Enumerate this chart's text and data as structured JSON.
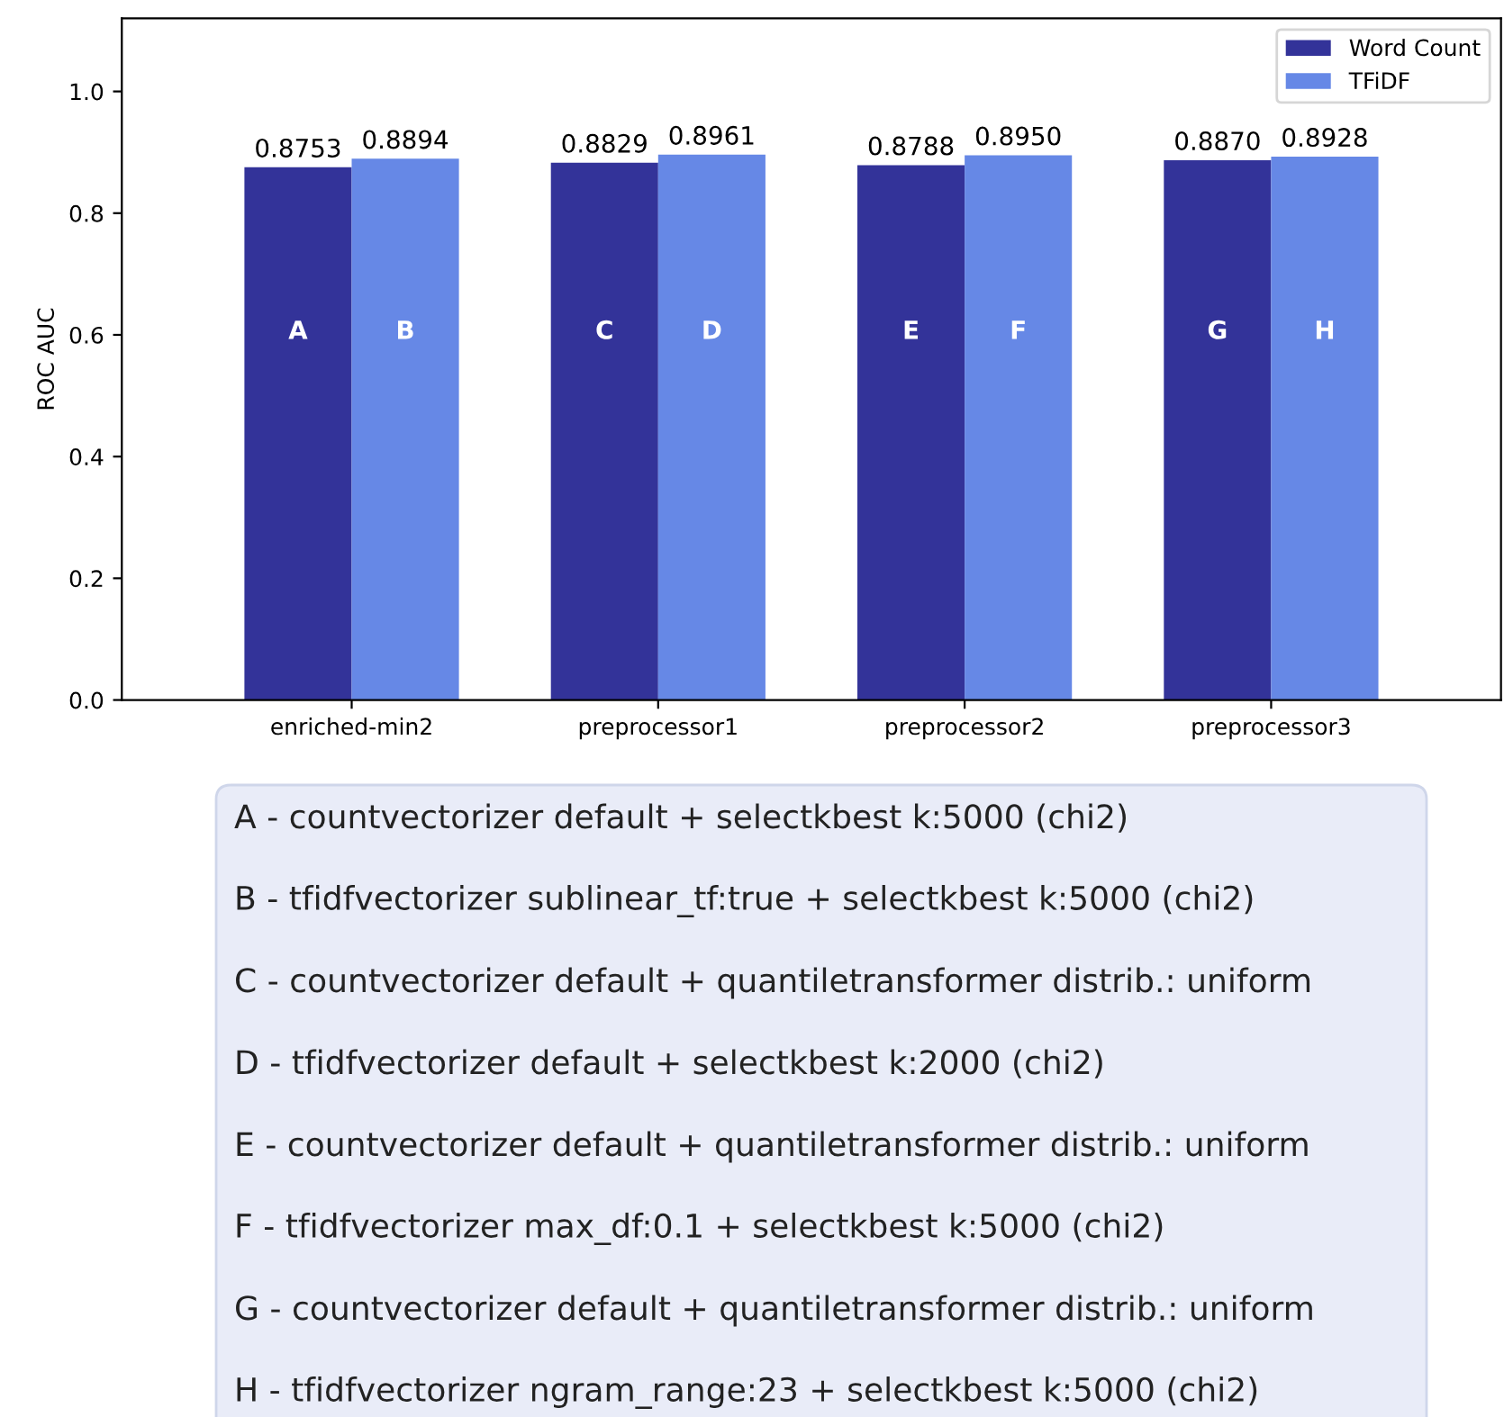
{
  "chart_data": {
    "type": "bar",
    "ylabel": "ROC AUC",
    "categories": [
      "enriched-min2",
      "preprocessor1",
      "preprocessor2",
      "preprocessor3"
    ],
    "series": [
      {
        "name": "Word Count",
        "color": "#333399",
        "values": [
          0.8753,
          0.8829,
          0.8788,
          0.887
        ],
        "value_labels": [
          "0.8753",
          "0.8829",
          "0.8788",
          "0.8870"
        ]
      },
      {
        "name": "TFiDF",
        "color": "#6688e6",
        "values": [
          0.8894,
          0.8961,
          0.895,
          0.8928
        ],
        "value_labels": [
          "0.8894",
          "0.8961",
          "0.8950",
          "0.8928"
        ]
      }
    ],
    "ylim": [
      0,
      1.12
    ],
    "yticks": [
      {
        "value": 0,
        "label": "0.0"
      },
      {
        "value": 0.2,
        "label": "0.2"
      },
      {
        "value": 0.4,
        "label": "0.4"
      },
      {
        "value": 0.6,
        "label": "0.6"
      },
      {
        "value": 0.8,
        "label": "0.8"
      },
      {
        "value": 1.0,
        "label": "1.0"
      }
    ],
    "grid": false,
    "legend": "top right",
    "annotations": [
      "A",
      "B",
      "C",
      "D",
      "E",
      "F",
      "G",
      "H",
      "A - countvectorizer default + selectkbest k:5000 (chi2)",
      "B - tfidfvectorizer sublinear_tf:true + selectkbest k:5000 (chi2)",
      "C - countvectorizer default + quantiletransformer distrib.: uniform",
      "D - tfidfvectorizer default + selectkbest k:2000 (chi2)",
      "E - countvectorizer default + quantiletransformer distrib.: uniform",
      "F - tfidfvectorizer max_df:0.1 + selectkbest k:5000 (chi2)",
      "G - countvectorizer default + quantiletransformer distrib.: uniform",
      "H - tfidfvectorizer ngram_range:23 + selectkbest k:5000 (chi2)"
    ]
  }
}
